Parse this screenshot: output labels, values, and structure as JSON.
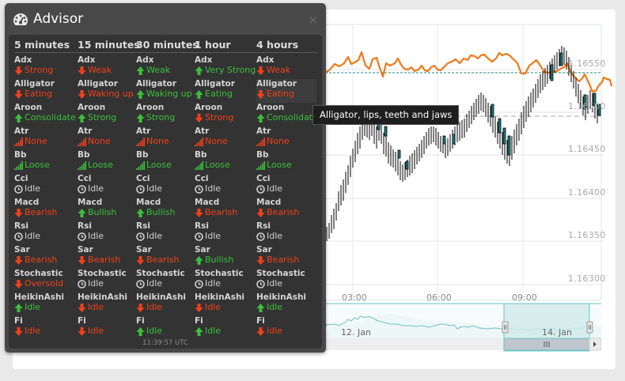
{
  "advisor": {
    "title": "Advisor",
    "close_label": "×",
    "timeframes": [
      "5 minutes",
      "15 minutes",
      "30 minutes",
      "1 hour",
      "4 hours"
    ],
    "indicators": [
      "Adx",
      "Alligator",
      "Aroon",
      "Atr",
      "Bb",
      "Cci",
      "Macd",
      "Rsi",
      "Sar",
      "Stochastic",
      "HeikinAshi",
      "Fi"
    ],
    "grid": [
      [
        {
          "value": "Strong",
          "icon": "arrow-down",
          "color": "red"
        },
        {
          "value": "Weak",
          "icon": "arrow-down",
          "color": "red"
        },
        {
          "value": "Weak",
          "icon": "arrow-up",
          "color": "green"
        },
        {
          "value": "Very Strong",
          "icon": "arrow-up",
          "color": "green"
        },
        {
          "value": "Weak",
          "icon": "arrow-down",
          "color": "red"
        }
      ],
      [
        {
          "value": "Eating",
          "icon": "arrow-down",
          "color": "red"
        },
        {
          "value": "Waking up",
          "icon": "arrow-down",
          "color": "red"
        },
        {
          "value": "Waking up",
          "icon": "arrow-up",
          "color": "green"
        },
        {
          "value": "Eating",
          "icon": "arrow-up",
          "color": "green"
        },
        {
          "value": "Eating",
          "icon": "arrow-down",
          "color": "red",
          "highlight": true
        }
      ],
      [
        {
          "value": "Consolidate",
          "icon": "arrow-up",
          "color": "green"
        },
        {
          "value": "Strong",
          "icon": "arrow-up",
          "color": "green"
        },
        {
          "value": "Strong",
          "icon": "arrow-up",
          "color": "green"
        },
        {
          "value": "Strong",
          "icon": "arrow-down",
          "color": "red"
        },
        {
          "value": "Consolidate",
          "icon": "arrow-up",
          "color": "green"
        }
      ],
      [
        {
          "value": "None",
          "icon": "signal-bars",
          "color": "red"
        },
        {
          "value": "None",
          "icon": "signal-bars",
          "color": "red"
        },
        {
          "value": "None",
          "icon": "signal-bars",
          "color": "red"
        },
        {
          "value": "None",
          "icon": "signal-bars",
          "color": "red"
        },
        {
          "value": "None",
          "icon": "signal-bars",
          "color": "red"
        }
      ],
      [
        {
          "value": "Loose",
          "icon": "signal-bars",
          "color": "green"
        },
        {
          "value": "Loose",
          "icon": "signal-bars",
          "color": "green"
        },
        {
          "value": "Loose",
          "icon": "signal-bars",
          "color": "green"
        },
        {
          "value": "Loose",
          "icon": "signal-bars",
          "color": "green"
        },
        {
          "value": "Loose",
          "icon": "signal-bars",
          "color": "green"
        }
      ],
      [
        {
          "value": "Idle",
          "icon": "clock",
          "color": "gray"
        },
        {
          "value": "Idle",
          "icon": "clock",
          "color": "gray"
        },
        {
          "value": "Idle",
          "icon": "clock",
          "color": "gray"
        },
        {
          "value": "Idle",
          "icon": "clock",
          "color": "gray"
        },
        {
          "value": "Idle",
          "icon": "clock",
          "color": "gray"
        }
      ],
      [
        {
          "value": "Bearish",
          "icon": "arrow-down",
          "color": "red"
        },
        {
          "value": "Bullish",
          "icon": "arrow-up",
          "color": "green"
        },
        {
          "value": "Bullish",
          "icon": "arrow-up",
          "color": "green"
        },
        {
          "value": "Bearish",
          "icon": "arrow-down",
          "color": "red"
        },
        {
          "value": "Bearish",
          "icon": "arrow-down",
          "color": "red"
        }
      ],
      [
        {
          "value": "Idle",
          "icon": "clock",
          "color": "gray"
        },
        {
          "value": "Idle",
          "icon": "clock",
          "color": "gray"
        },
        {
          "value": "Idle",
          "icon": "clock",
          "color": "gray"
        },
        {
          "value": "Idle",
          "icon": "clock",
          "color": "gray"
        },
        {
          "value": "Idle",
          "icon": "clock",
          "color": "gray"
        }
      ],
      [
        {
          "value": "Bearish",
          "icon": "arrow-down",
          "color": "red"
        },
        {
          "value": "Bearish",
          "icon": "arrow-down",
          "color": "red"
        },
        {
          "value": "Bearish",
          "icon": "arrow-down",
          "color": "red"
        },
        {
          "value": "Bullish",
          "icon": "arrow-up",
          "color": "green"
        },
        {
          "value": "Bearish",
          "icon": "arrow-down",
          "color": "red"
        }
      ],
      [
        {
          "value": "Oversold",
          "icon": "arrow-down",
          "color": "red"
        },
        {
          "value": "Idle",
          "icon": "clock",
          "color": "gray"
        },
        {
          "value": "Idle",
          "icon": "clock",
          "color": "gray"
        },
        {
          "value": "Idle",
          "icon": "clock",
          "color": "gray"
        },
        {
          "value": "Idle",
          "icon": "clock",
          "color": "gray"
        }
      ],
      [
        {
          "value": "Idle",
          "icon": "arrow-up",
          "color": "green"
        },
        {
          "value": "Idle",
          "icon": "arrow-down",
          "color": "red"
        },
        {
          "value": "Idle",
          "icon": "arrow-down",
          "color": "red"
        },
        {
          "value": "Idle",
          "icon": "arrow-down",
          "color": "red"
        },
        {
          "value": "Idle",
          "icon": "arrow-up",
          "color": "green"
        }
      ],
      [
        {
          "value": "Idle",
          "icon": "arrow-down",
          "color": "red"
        },
        {
          "value": "Idle",
          "icon": "arrow-down",
          "color": "red"
        },
        {
          "value": "Idle",
          "icon": "arrow-up",
          "color": "green"
        },
        {
          "value": "Idle",
          "icon": "arrow-up",
          "color": "green"
        },
        {
          "value": "Idle",
          "icon": "arrow-down",
          "color": "red"
        }
      ]
    ],
    "timestamp": "11:39:57 UTC"
  },
  "tooltip": {
    "text": "Alligator, lips, teeth and jaws"
  },
  "chart": {
    "y_labels": [
      "1.16550",
      "1.16500",
      "1.16450",
      "1.16400",
      "1.16350",
      "1.16300"
    ],
    "x_labels": [
      "03:00",
      "06:00",
      "09:00"
    ],
    "navigator_labels": [
      "12. Jan",
      "14. Jan"
    ],
    "colors": {
      "candle_up": "#ffffff",
      "candle_down": "#1f7a80",
      "alligator_line": "#f07818",
      "current_price_line": "#1a8a7a",
      "navigator_line": "#6cc4c4",
      "navigator_selection": "#cfeaea"
    }
  }
}
